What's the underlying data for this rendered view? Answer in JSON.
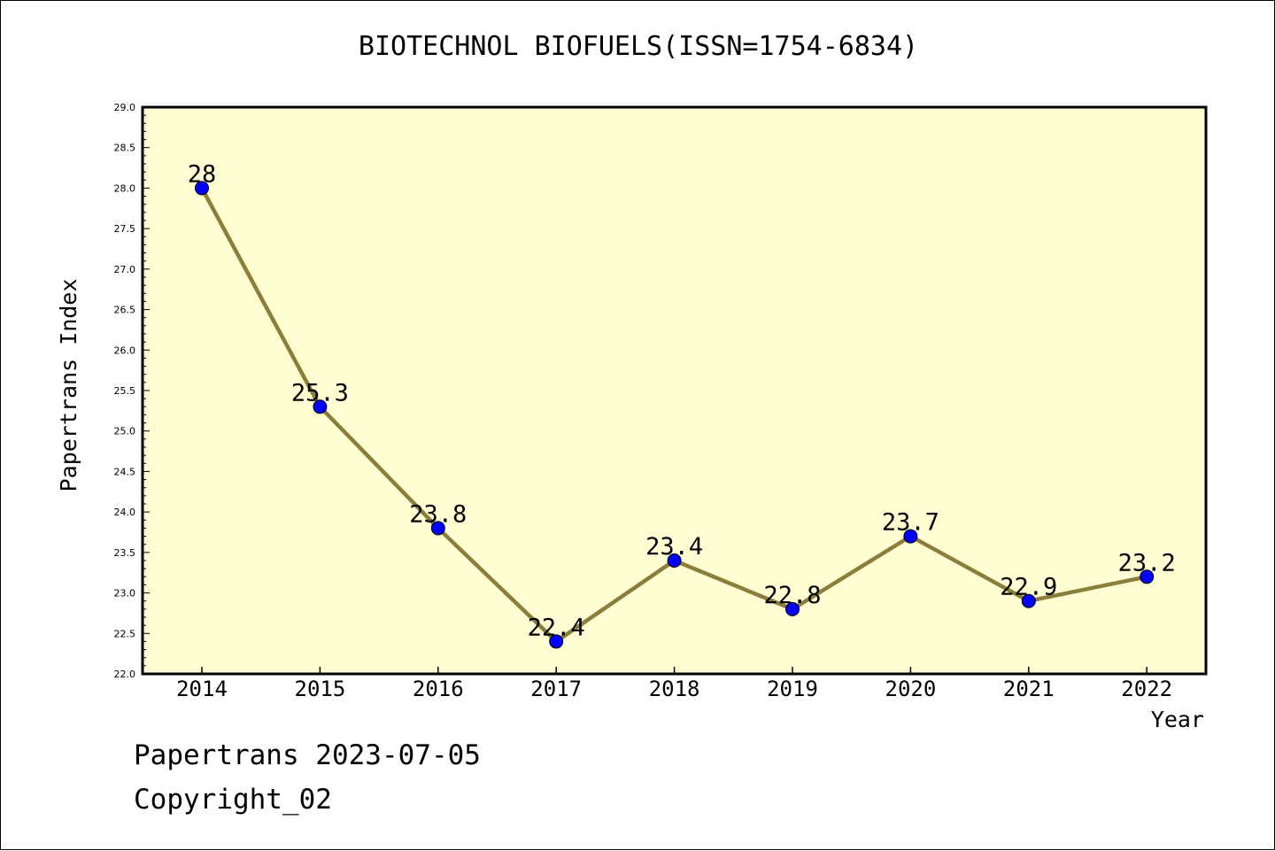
{
  "chart_data": {
    "type": "line",
    "title": "BIOTECHNOL BIOFUELS(ISSN=1754-6834)",
    "xlabel": "Year",
    "ylabel": "Papertrans Index",
    "categories": [
      "2014",
      "2015",
      "2016",
      "2017",
      "2018",
      "2019",
      "2020",
      "2021",
      "2022"
    ],
    "series": [
      {
        "values": [
          28,
          25.3,
          23.8,
          22.4,
          23.4,
          22.8,
          23.7,
          22.9,
          23.2
        ],
        "labels": [
          "28",
          "25.3",
          "23.8",
          "22.4",
          "23.4",
          "22.8",
          "23.7",
          "22.9",
          "23.2"
        ]
      }
    ],
    "ylim": [
      22.0,
      29.0
    ],
    "yticks": [
      "22.0",
      "22.5",
      "23.0",
      "23.5",
      "24.0",
      "24.5",
      "25.0",
      "25.5",
      "26.0",
      "26.5",
      "27.0",
      "27.5",
      "28.0",
      "28.5",
      "29.0"
    ],
    "colors": {
      "plot_background": "#ffffd3",
      "line": "#8b7d3a",
      "marker": "#0000ff"
    },
    "grid": false
  },
  "footer": {
    "line1": "Papertrans 2023-07-05",
    "line2": "Copyright_02"
  }
}
